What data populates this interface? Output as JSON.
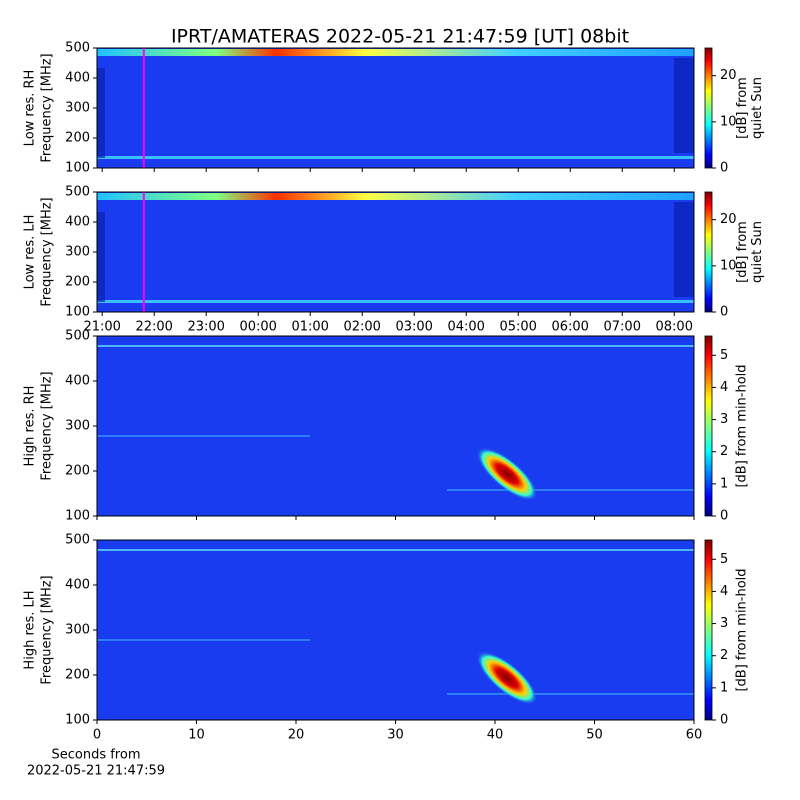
{
  "title": "IPRT/AMATERAS 2022-05-21 21:47:59 [UT]   08bit",
  "chart_data": [
    {
      "type": "heatmap",
      "cmap": "jet",
      "ylabel": [
        "Low res. RH",
        "Frequency [MHz]"
      ],
      "xlim": [
        20.9,
        32.38
      ],
      "ylim": [
        100,
        500
      ],
      "yticks": [
        100,
        200,
        300,
        400,
        500
      ],
      "clim": [
        0,
        26
      ],
      "cticks": [
        0,
        10,
        20
      ],
      "clabel": [
        "[dB] from",
        "quiet Sun"
      ],
      "vlines": [
        {
          "x": 21.8,
          "color": "#ff00ff"
        }
      ]
    },
    {
      "type": "heatmap",
      "cmap": "jet",
      "ylabel": [
        "Low res. LH",
        "Frequency [MHz]"
      ],
      "xlim": [
        20.9,
        32.38
      ],
      "ylim": [
        100,
        500
      ],
      "yticks": [
        100,
        200,
        300,
        400,
        500
      ],
      "xticks": [
        {
          "value": 21,
          "label": "21:00"
        },
        {
          "value": 22,
          "label": "22:00"
        },
        {
          "value": 23,
          "label": "23:00"
        },
        {
          "value": 24,
          "label": "00:00"
        },
        {
          "value": 25,
          "label": "01:00"
        },
        {
          "value": 26,
          "label": "02:00"
        },
        {
          "value": 27,
          "label": "03:00"
        },
        {
          "value": 28,
          "label": "04:00"
        },
        {
          "value": 29,
          "label": "05:00"
        },
        {
          "value": 30,
          "label": "06:00"
        },
        {
          "value": 31,
          "label": "07:00"
        },
        {
          "value": 32,
          "label": "08:00"
        }
      ],
      "clim": [
        0,
        26
      ],
      "cticks": [
        0,
        10,
        20
      ],
      "clabel": [
        "[dB] from",
        "quiet Sun"
      ],
      "vlines": [
        {
          "x": 21.8,
          "color": "#ff00ff"
        }
      ]
    },
    {
      "type": "heatmap",
      "cmap": "jet",
      "ylabel": [
        "High res. RH",
        "Frequency [MHz]"
      ],
      "xlim": [
        0,
        60
      ],
      "ylim": [
        100,
        500
      ],
      "yticks": [
        100,
        200,
        300,
        400,
        500
      ],
      "clim": [
        0,
        5.6
      ],
      "cticks": [
        0,
        1,
        2,
        3,
        4,
        5
      ],
      "clabel": [
        "[dB] from min-hold"
      ]
    },
    {
      "type": "heatmap",
      "cmap": "jet",
      "ylabel": [
        "High res. LH",
        "Frequency [MHz]"
      ],
      "xlim": [
        0,
        60
      ],
      "ylim": [
        100,
        500
      ],
      "yticks": [
        100,
        200,
        300,
        400,
        500
      ],
      "xticks": [
        0,
        10,
        20,
        30,
        40,
        50,
        60
      ],
      "xlabel": [
        "Seconds from",
        "2022-05-21 21:47:59"
      ],
      "clim": [
        0,
        5.6
      ],
      "cticks": [
        0,
        1,
        2,
        3,
        4,
        5
      ],
      "clabel": [
        "[dB] from min-hold"
      ]
    }
  ]
}
